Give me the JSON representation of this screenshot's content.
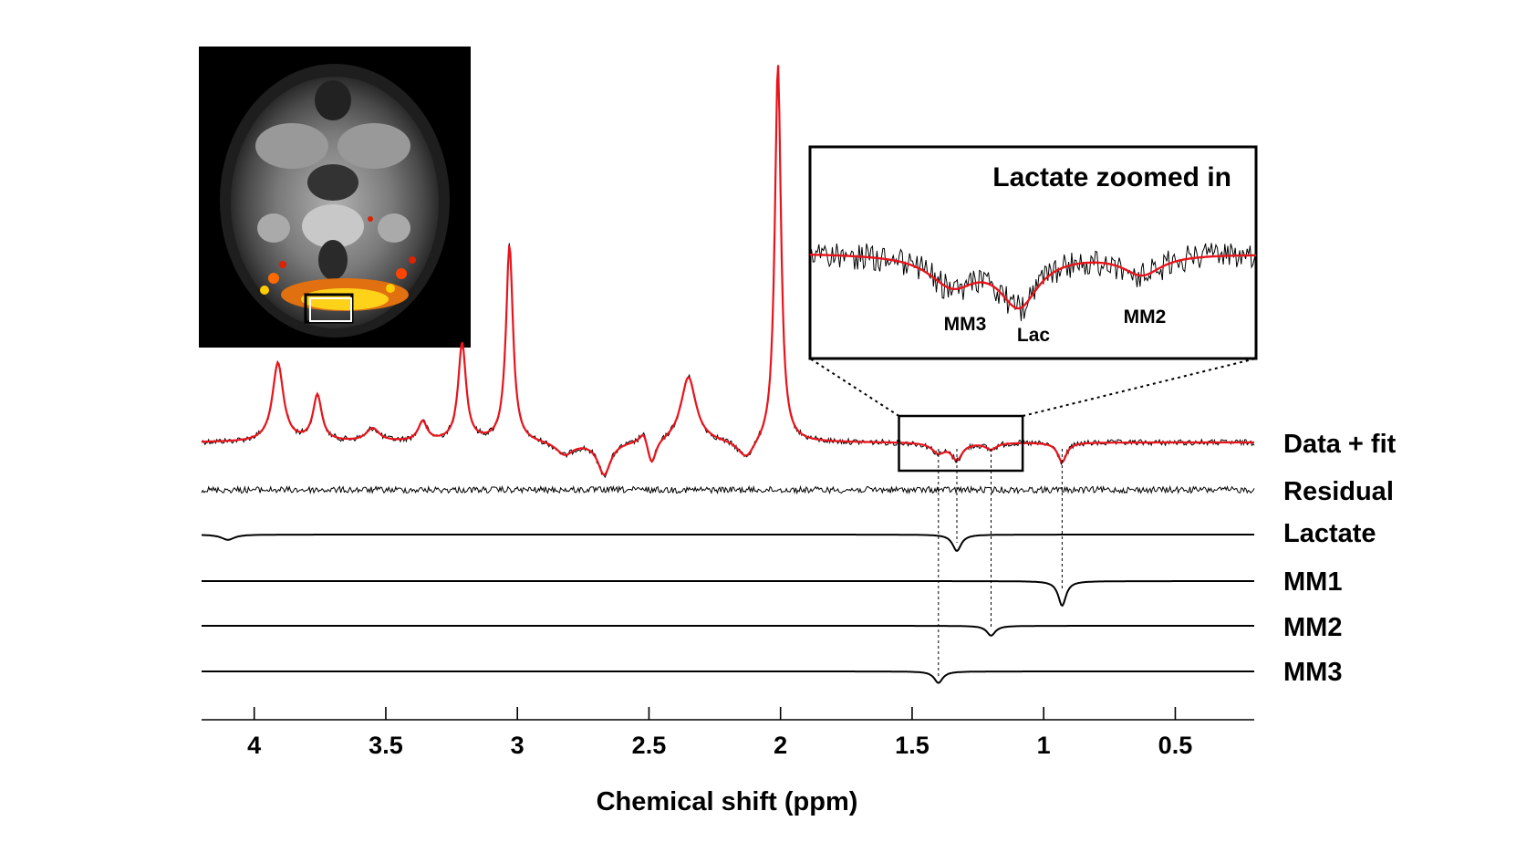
{
  "chart_data": {
    "type": "line",
    "title": "",
    "xlabel": "Chemical shift (ppm)",
    "ylabel": "",
    "xlim": [
      4.2,
      0.2
    ],
    "x_reversed": true,
    "ticks": [
      {
        "value": 4,
        "label": "4"
      },
      {
        "value": 3.5,
        "label": "3.5"
      },
      {
        "value": 3,
        "label": "3"
      },
      {
        "value": 2.5,
        "label": "2.5"
      },
      {
        "value": 2,
        "label": "2"
      },
      {
        "value": 1.5,
        "label": "1.5"
      },
      {
        "value": 1,
        "label": "1"
      },
      {
        "value": 0.5,
        "label": "0.5"
      }
    ],
    "series": [
      {
        "name": "Data + fit",
        "key": "data_fit",
        "amplitude_scale": 1.0,
        "peaks": [
          {
            "ppm": 3.91,
            "amp": 0.12,
            "width": 0.025
          },
          {
            "ppm": 3.76,
            "amp": 0.07,
            "width": 0.02
          },
          {
            "ppm": 3.55,
            "amp": 0.02,
            "width": 0.03
          },
          {
            "ppm": 3.36,
            "amp": 0.03,
            "width": 0.02
          },
          {
            "ppm": 3.21,
            "amp": 0.15,
            "width": 0.018
          },
          {
            "ppm": 3.03,
            "amp": 0.3,
            "width": 0.016
          },
          {
            "ppm": 2.82,
            "amp": -0.02,
            "width": 0.04
          },
          {
            "ppm": 2.67,
            "amp": -0.05,
            "width": 0.03
          },
          {
            "ppm": 2.52,
            "amp": 0.02,
            "width": 0.02
          },
          {
            "ppm": 2.49,
            "amp": -0.04,
            "width": 0.02
          },
          {
            "ppm": 2.35,
            "amp": 0.1,
            "width": 0.035
          },
          {
            "ppm": 2.13,
            "amp": -0.03,
            "width": 0.04
          },
          {
            "ppm": 2.01,
            "amp": 0.58,
            "width": 0.014
          },
          {
            "ppm": 1.4,
            "amp": -0.015,
            "width": 0.03
          },
          {
            "ppm": 1.33,
            "amp": -0.025,
            "width": 0.025
          },
          {
            "ppm": 1.2,
            "amp": -0.01,
            "width": 0.025
          },
          {
            "ppm": 0.93,
            "amp": -0.03,
            "width": 0.02
          }
        ]
      },
      {
        "name": "Residual",
        "key": "residual",
        "amplitude_scale": 0.0,
        "peaks": []
      },
      {
        "name": "Lactate",
        "key": "lactate",
        "amplitude_scale": 1.0,
        "peaks": [
          {
            "ppm": 4.1,
            "amp": -0.008,
            "width": 0.03
          },
          {
            "ppm": 1.33,
            "amp": -0.025,
            "width": 0.02
          }
        ]
      },
      {
        "name": "MM1",
        "key": "mm1",
        "amplitude_scale": 1.0,
        "peaks": [
          {
            "ppm": 0.93,
            "amp": -0.03,
            "width": 0.018
          }
        ]
      },
      {
        "name": "MM2",
        "key": "mm2",
        "amplitude_scale": 1.0,
        "peaks": [
          {
            "ppm": 1.2,
            "amp": -0.012,
            "width": 0.02
          }
        ]
      },
      {
        "name": "MM3",
        "key": "mm3",
        "amplitude_scale": 1.0,
        "peaks": [
          {
            "ppm": 1.4,
            "amp": -0.014,
            "width": 0.02
          }
        ]
      }
    ],
    "guide_lines_ppm": [
      1.4,
      1.33,
      1.2,
      0.93
    ],
    "zoom_region_ppm": [
      1.55,
      1.08
    ],
    "inset": {
      "title": "Lactate zoomed in",
      "peak_labels": [
        {
          "name": "MM3",
          "ppm": 1.4
        },
        {
          "name": "Lac",
          "ppm": 1.33
        },
        {
          "name": "MM2",
          "ppm": 1.2
        }
      ]
    },
    "fit_color": "#e8141b",
    "data_color": "#000000"
  }
}
